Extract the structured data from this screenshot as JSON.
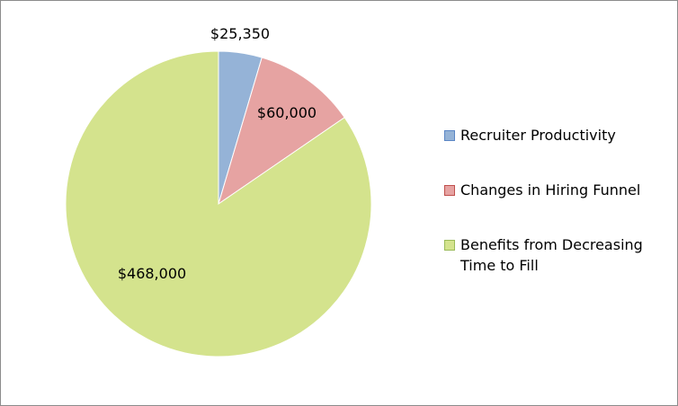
{
  "chart_data": {
    "type": "pie",
    "categories": [
      "Recruiter Productivity",
      "Changes in Hiring Funnel",
      "Benefits from Decreasing\nTime to Fill"
    ],
    "values": [
      25350,
      60000,
      468000
    ],
    "data_labels": [
      "$25,350",
      "$60,000",
      "$468,000"
    ],
    "colors": [
      "#95b3d7",
      "#e6a3a2",
      "#d4e38d"
    ],
    "edge_colors": [
      "#5b86c5",
      "#c0504d",
      "#9bbb59"
    ],
    "legend_position": "right",
    "start_angle": "12 o'clock, clockwise"
  }
}
